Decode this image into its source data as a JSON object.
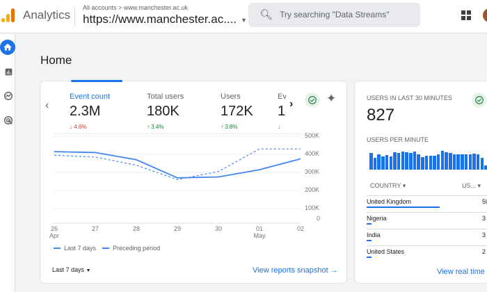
{
  "header": {
    "app_name": "Analytics",
    "breadcrumb": "All accounts > www.manchester.ac.uk",
    "property": "https://www.manchester.ac....",
    "search_placeholder": "Try searching \"Data Streams\""
  },
  "sidebar": {
    "items": [
      {
        "icon": "home-icon",
        "active": true
      },
      {
        "icon": "reports-icon"
      },
      {
        "icon": "explore-icon"
      },
      {
        "icon": "advertising-icon"
      }
    ]
  },
  "page_title": "Home",
  "overview": {
    "metrics": [
      {
        "label": "Event count",
        "value": "2.3M",
        "change": "4.6%",
        "dir": "down"
      },
      {
        "label": "Total users",
        "value": "180K",
        "change": "3.4%",
        "dir": "up"
      },
      {
        "label": "Users",
        "value": "172K",
        "change": "3.8%",
        "dir": "up"
      },
      {
        "label": "Ev",
        "value": "1",
        "change": "",
        "dir": "down"
      }
    ],
    "date_range": "Last 7 days",
    "link": "View reports snapshot"
  },
  "chart_data": {
    "type": "line",
    "x": [
      "26 Apr",
      "27",
      "28",
      "29",
      "30",
      "01 May",
      "02"
    ],
    "x_tick_labels": [
      [
        "26",
        "Apr"
      ],
      [
        "27",
        ""
      ],
      [
        "28",
        ""
      ],
      [
        "29",
        ""
      ],
      [
        "30",
        ""
      ],
      [
        "01",
        "May"
      ],
      [
        "02",
        ""
      ]
    ],
    "y_ticks": [
      "500K",
      "400K",
      "300K",
      "200K",
      "100K",
      "0"
    ],
    "grid": true,
    "legend": "bottom-left",
    "series": [
      {
        "name": "Last 7 days",
        "style": "solid",
        "values": [
          415000,
          410000,
          370000,
          270000,
          275000,
          315000,
          375000
        ]
      },
      {
        "name": "Preceding period",
        "style": "dashed",
        "values": [
          395000,
          385000,
          340000,
          260000,
          305000,
          430000,
          430000
        ]
      }
    ],
    "color": "#4285f4"
  },
  "realtime": {
    "title": "USERS IN LAST 30 MINUTES",
    "value": "827",
    "subtitle": "USERS PER MINUTE",
    "per_minute_relative": [
      0.85,
      0.6,
      0.8,
      0.68,
      0.75,
      0.68,
      0.9,
      0.85,
      0.92,
      0.9,
      0.85,
      0.92,
      0.8,
      0.65,
      0.72,
      0.72,
      0.72,
      0.8,
      0.95,
      0.9,
      0.85,
      0.8,
      0.8,
      0.78,
      0.8,
      0.78,
      0.82,
      0.8,
      0.6,
      0.2
    ],
    "col_country": "COUNTRY",
    "col_users": "US...",
    "rows": [
      {
        "country": "United Kingdom",
        "users": "50",
        "share": 0.6
      },
      {
        "country": "Nigeria",
        "users": "3",
        "share": 0.04
      },
      {
        "country": "India",
        "users": "3",
        "share": 0.04
      },
      {
        "country": "United States",
        "users": "2",
        "share": 0.04
      }
    ],
    "link": "View real time"
  }
}
